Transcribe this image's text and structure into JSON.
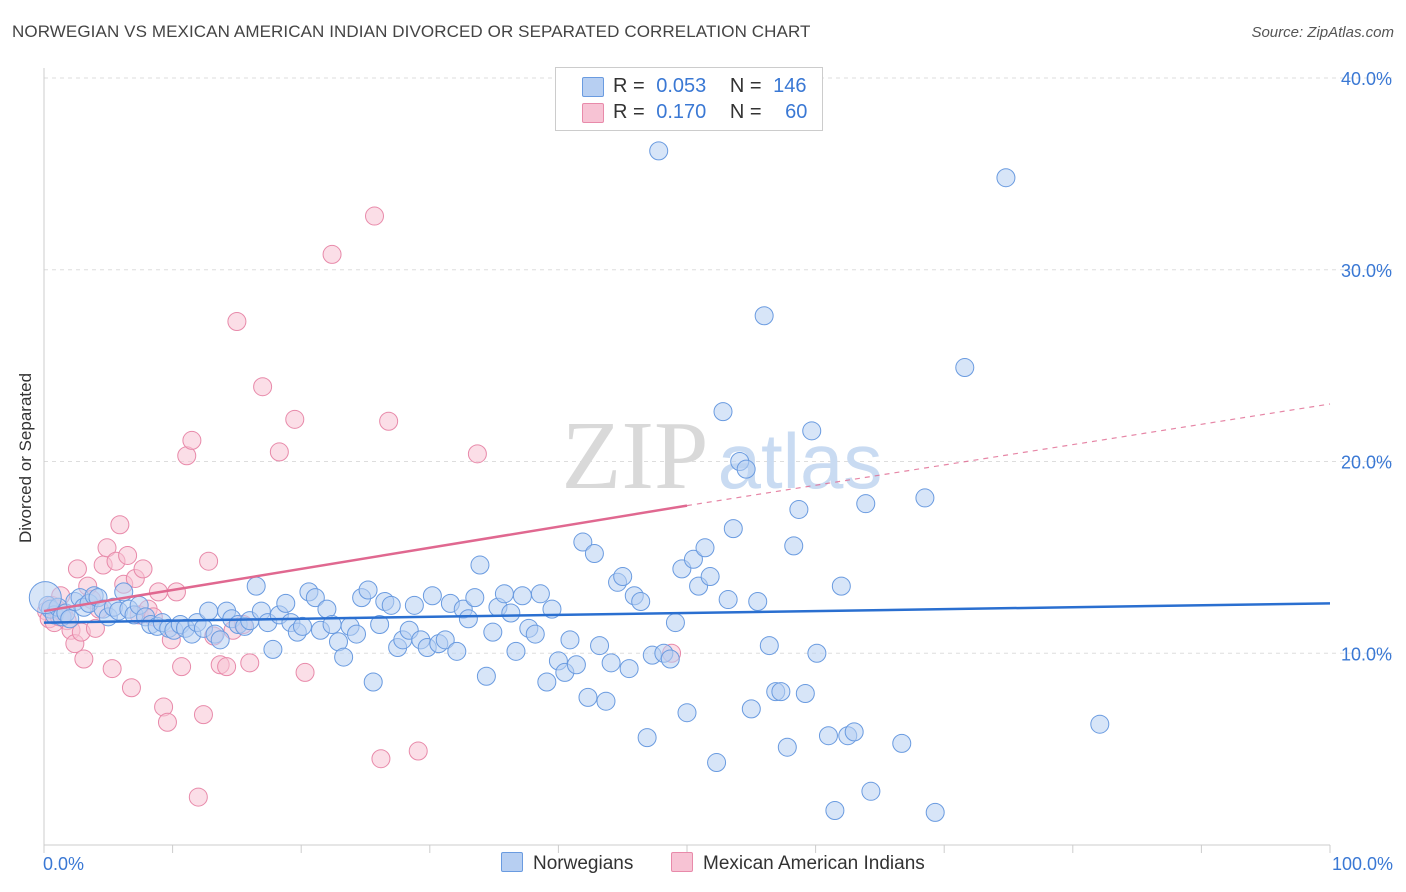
{
  "title": "NORWEGIAN VS MEXICAN AMERICAN INDIAN DIVORCED OR SEPARATED CORRELATION CHART",
  "source": "Source: ZipAtlas.com",
  "watermark": "ZIPatlas",
  "colors": {
    "blue_fill": "#b7cff2",
    "blue_stroke": "#6a9be0",
    "blue_line": "#2a6fd0",
    "pink_fill": "#f7c3d4",
    "pink_stroke": "#e88aaa",
    "pink_line": "#e06890",
    "tick_text": "#3a78d4"
  },
  "legend": {
    "rows": [
      {
        "r_label": "R =",
        "r_value": "0.053",
        "n_label": "N =",
        "n_value": "146"
      },
      {
        "r_label": "R =",
        "r_value": "0.170",
        "n_label": "N =",
        "n_value": "60"
      }
    ],
    "bottom": [
      "Norwegians",
      "Mexican American Indians"
    ]
  },
  "chart_data": {
    "type": "scatter",
    "title": "NORWEGIAN VS MEXICAN AMERICAN INDIAN DIVORCED OR SEPARATED CORRELATION CHART",
    "xlabel": "",
    "ylabel": "Divorced or Separated",
    "xlim": [
      0,
      100
    ],
    "ylim": [
      0,
      40
    ],
    "x_tick_labels": [
      "0.0%",
      "100.0%"
    ],
    "y_ticks": [
      10,
      20,
      30,
      40
    ],
    "y_tick_labels": [
      "10.0%",
      "20.0%",
      "30.0%",
      "40.0%"
    ],
    "grid": true,
    "legend_position": "top-center",
    "series": [
      {
        "name": "Norwegians",
        "R": 0.053,
        "N": 146,
        "trend": {
          "x": [
            0,
            100
          ],
          "y": [
            11.6,
            12.6
          ]
        },
        "points": [
          [
            0.3,
            12.5
          ],
          [
            0.5,
            12.3
          ],
          [
            0.8,
            12.0
          ],
          [
            1.1,
            12.4
          ],
          [
            1.4,
            11.9
          ],
          [
            1.7,
            12.1
          ],
          [
            2.0,
            11.8
          ],
          [
            2.4,
            12.7
          ],
          [
            2.8,
            12.9
          ],
          [
            3.1,
            12.4
          ],
          [
            3.5,
            12.6
          ],
          [
            3.9,
            13.0
          ],
          [
            4.2,
            12.9
          ],
          [
            4.6,
            12.3
          ],
          [
            5.0,
            11.9
          ],
          [
            5.4,
            12.4
          ],
          [
            5.8,
            12.2
          ],
          [
            6.2,
            13.2
          ],
          [
            6.6,
            12.3
          ],
          [
            7.0,
            12.0
          ],
          [
            7.4,
            12.5
          ],
          [
            7.9,
            11.9
          ],
          [
            8.3,
            11.5
          ],
          [
            8.8,
            11.4
          ],
          [
            9.2,
            11.6
          ],
          [
            9.7,
            11.3
          ],
          [
            10.1,
            11.2
          ],
          [
            10.6,
            11.5
          ],
          [
            11.0,
            11.3
          ],
          [
            11.5,
            11.0
          ],
          [
            11.9,
            11.6
          ],
          [
            12.4,
            11.3
          ],
          [
            12.8,
            12.2
          ],
          [
            13.3,
            11.0
          ],
          [
            13.7,
            10.7
          ],
          [
            14.2,
            12.2
          ],
          [
            14.6,
            11.8
          ],
          [
            15.1,
            11.5
          ],
          [
            15.6,
            11.4
          ],
          [
            16.0,
            11.7
          ],
          [
            16.5,
            13.5
          ],
          [
            16.9,
            12.2
          ],
          [
            17.4,
            11.6
          ],
          [
            17.8,
            10.2
          ],
          [
            18.3,
            12.0
          ],
          [
            18.8,
            12.6
          ],
          [
            19.2,
            11.6
          ],
          [
            19.7,
            11.1
          ],
          [
            20.1,
            11.4
          ],
          [
            20.6,
            13.2
          ],
          [
            21.1,
            12.9
          ],
          [
            21.5,
            11.2
          ],
          [
            22.0,
            12.3
          ],
          [
            22.4,
            11.5
          ],
          [
            22.9,
            10.6
          ],
          [
            23.3,
            9.8
          ],
          [
            23.8,
            11.4
          ],
          [
            24.3,
            11.0
          ],
          [
            24.7,
            12.9
          ],
          [
            25.2,
            13.3
          ],
          [
            25.6,
            8.5
          ],
          [
            26.1,
            11.5
          ],
          [
            26.5,
            12.7
          ],
          [
            27.0,
            12.5
          ],
          [
            27.5,
            10.3
          ],
          [
            27.9,
            10.7
          ],
          [
            28.4,
            11.2
          ],
          [
            28.8,
            12.5
          ],
          [
            29.3,
            10.7
          ],
          [
            29.8,
            10.3
          ],
          [
            30.2,
            13.0
          ],
          [
            30.7,
            10.5
          ],
          [
            31.2,
            10.7
          ],
          [
            31.6,
            12.6
          ],
          [
            32.1,
            10.1
          ],
          [
            32.6,
            12.3
          ],
          [
            33.0,
            11.8
          ],
          [
            33.5,
            12.9
          ],
          [
            33.9,
            14.6
          ],
          [
            34.4,
            8.8
          ],
          [
            34.9,
            11.1
          ],
          [
            35.3,
            12.4
          ],
          [
            35.8,
            13.1
          ],
          [
            36.3,
            12.1
          ],
          [
            36.7,
            10.1
          ],
          [
            37.2,
            13.0
          ],
          [
            37.7,
            11.3
          ],
          [
            38.2,
            11.0
          ],
          [
            38.6,
            13.1
          ],
          [
            39.1,
            8.5
          ],
          [
            39.5,
            12.3
          ],
          [
            40.0,
            9.6
          ],
          [
            40.5,
            9.0
          ],
          [
            40.9,
            10.7
          ],
          [
            41.4,
            9.4
          ],
          [
            41.9,
            15.8
          ],
          [
            42.3,
            7.7
          ],
          [
            42.8,
            15.2
          ],
          [
            43.2,
            10.4
          ],
          [
            43.7,
            7.5
          ],
          [
            44.1,
            9.5
          ],
          [
            44.6,
            13.7
          ],
          [
            45.0,
            14.0
          ],
          [
            45.5,
            9.2
          ],
          [
            45.9,
            13.0
          ],
          [
            46.4,
            12.7
          ],
          [
            46.9,
            5.6
          ],
          [
            47.3,
            9.9
          ],
          [
            47.8,
            36.2
          ],
          [
            48.2,
            10.0
          ],
          [
            48.7,
            9.7
          ],
          [
            49.1,
            11.6
          ],
          [
            49.6,
            14.4
          ],
          [
            50.0,
            6.9
          ],
          [
            50.5,
            14.9
          ],
          [
            50.9,
            13.5
          ],
          [
            51.4,
            15.5
          ],
          [
            51.8,
            14.0
          ],
          [
            52.3,
            4.3
          ],
          [
            52.8,
            22.6
          ],
          [
            53.2,
            12.8
          ],
          [
            53.6,
            16.5
          ],
          [
            54.1,
            20.0
          ],
          [
            54.6,
            19.6
          ],
          [
            55.0,
            7.1
          ],
          [
            55.5,
            12.7
          ],
          [
            56.0,
            27.6
          ],
          [
            56.4,
            10.4
          ],
          [
            56.9,
            8.0
          ],
          [
            57.3,
            8.0
          ],
          [
            57.8,
            5.1
          ],
          [
            58.3,
            15.6
          ],
          [
            58.7,
            17.5
          ],
          [
            59.2,
            7.9
          ],
          [
            59.7,
            21.6
          ],
          [
            60.1,
            10.0
          ],
          [
            61.0,
            5.7
          ],
          [
            61.5,
            1.8
          ],
          [
            62.0,
            13.5
          ],
          [
            62.5,
            5.7
          ],
          [
            63.0,
            5.9
          ],
          [
            63.9,
            17.8
          ],
          [
            64.3,
            2.8
          ],
          [
            66.7,
            5.3
          ],
          [
            68.5,
            18.1
          ],
          [
            69.3,
            1.7
          ],
          [
            71.6,
            24.9
          ],
          [
            74.8,
            34.8
          ],
          [
            82.1,
            6.3
          ],
          [
            0.1,
            12.9
          ]
        ]
      },
      {
        "name": "Mexican American Indians",
        "R": 0.17,
        "N": 60,
        "trend": {
          "x": [
            0,
            50
          ],
          "y": [
            12.2,
            17.7
          ]
        },
        "trend_extension": {
          "x": [
            50,
            100
          ],
          "y": [
            17.7,
            23.0
          ]
        },
        "points": [
          [
            0.2,
            12.2
          ],
          [
            0.4,
            11.8
          ],
          [
            0.6,
            12.5
          ],
          [
            0.8,
            11.6
          ],
          [
            1.0,
            12.3
          ],
          [
            1.2,
            11.9
          ],
          [
            1.5,
            12.1
          ],
          [
            1.8,
            11.7
          ],
          [
            2.1,
            11.2
          ],
          [
            2.4,
            10.5
          ],
          [
            2.6,
            14.4
          ],
          [
            2.9,
            11.1
          ],
          [
            3.1,
            9.7
          ],
          [
            3.4,
            13.5
          ],
          [
            3.7,
            12.8
          ],
          [
            4.0,
            11.3
          ],
          [
            4.3,
            12.3
          ],
          [
            4.6,
            14.6
          ],
          [
            4.9,
            15.5
          ],
          [
            5.3,
            9.2
          ],
          [
            5.6,
            14.8
          ],
          [
            5.9,
            16.7
          ],
          [
            6.2,
            13.6
          ],
          [
            6.5,
            15.1
          ],
          [
            6.8,
            8.2
          ],
          [
            7.1,
            13.9
          ],
          [
            7.4,
            12.0
          ],
          [
            7.7,
            14.4
          ],
          [
            8.1,
            12.3
          ],
          [
            8.5,
            11.9
          ],
          [
            8.9,
            13.2
          ],
          [
            9.3,
            7.2
          ],
          [
            9.6,
            6.4
          ],
          [
            9.9,
            10.7
          ],
          [
            10.3,
            13.2
          ],
          [
            10.7,
            9.3
          ],
          [
            11.1,
            20.3
          ],
          [
            11.5,
            21.1
          ],
          [
            12.0,
            2.5
          ],
          [
            12.4,
            6.8
          ],
          [
            12.8,
            14.8
          ],
          [
            13.2,
            10.9
          ],
          [
            13.7,
            9.4
          ],
          [
            14.2,
            9.3
          ],
          [
            14.7,
            11.2
          ],
          [
            15.0,
            27.3
          ],
          [
            15.5,
            11.5
          ],
          [
            16.0,
            9.5
          ],
          [
            17.0,
            23.9
          ],
          [
            18.3,
            20.5
          ],
          [
            19.5,
            22.2
          ],
          [
            20.3,
            9.0
          ],
          [
            22.4,
            30.8
          ],
          [
            25.7,
            32.8
          ],
          [
            26.2,
            4.5
          ],
          [
            26.8,
            22.1
          ],
          [
            29.1,
            4.9
          ],
          [
            33.7,
            20.4
          ],
          [
            48.8,
            10.0
          ],
          [
            1.3,
            13.0
          ]
        ]
      }
    ]
  }
}
